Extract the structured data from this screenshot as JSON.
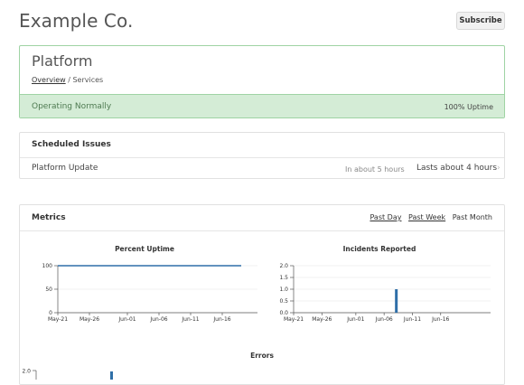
{
  "header": {
    "brand": "Example Co.",
    "subscribe_label": "Subscribe"
  },
  "platform": {
    "title": "Platform",
    "breadcrumb": {
      "link": "Overview",
      "separator": " / ",
      "current": "Services"
    },
    "status": "Operating Normally",
    "uptime": "100% Uptime"
  },
  "issues": {
    "title": "Scheduled Issues",
    "items": [
      {
        "name": "Platform Update",
        "when": "In about 5 hours",
        "duration": "Lasts about 4 hours"
      }
    ]
  },
  "metrics": {
    "title": "Metrics",
    "ranges": [
      "Past Day",
      "Past Week",
      "Past Month"
    ],
    "accent_color": "#2f6fa8"
  },
  "chart_data": [
    {
      "type": "line",
      "title": "Percent Uptime",
      "x": [
        "May-21",
        "Jun-19"
      ],
      "y": [
        100,
        100
      ],
      "ylim": [
        0,
        100
      ],
      "yticks": [
        "100",
        "50",
        "0"
      ],
      "xticks": [
        "May-21",
        "May-26",
        "Jun-01",
        "Jun-06",
        "Jun-11",
        "Jun-16"
      ]
    },
    {
      "type": "bar",
      "title": "Incidents Reported",
      "x": [
        "Jun-08"
      ],
      "y": [
        1.0
      ],
      "ylim": [
        0,
        2
      ],
      "yticks": [
        "2.0",
        "1.5",
        "1.0",
        "0.5",
        "0.0"
      ],
      "xticks": [
        "May-21",
        "May-26",
        "Jun-01",
        "Jun-06",
        "Jun-11",
        "Jun-16"
      ]
    },
    {
      "type": "bar",
      "title": "Errors",
      "yticks": [
        "2.0"
      ]
    }
  ]
}
